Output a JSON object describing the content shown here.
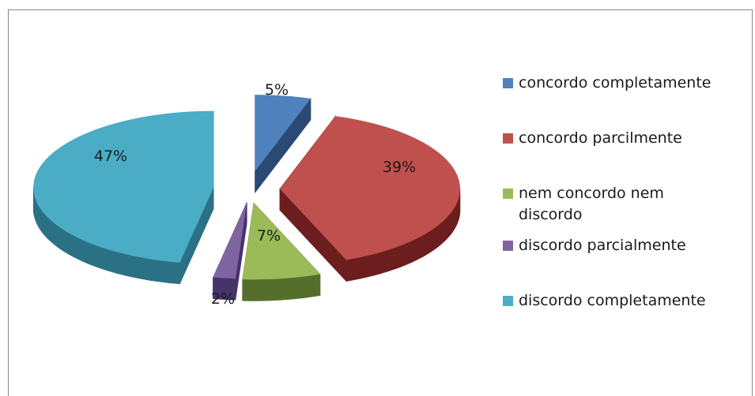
{
  "chart_data": {
    "type": "pie",
    "categories": [
      "concordo completamente",
      "concordo parcilmente",
      "nem concordo nem discordo",
      "discordo parcialmente",
      "discordo completamente"
    ],
    "values": [
      5,
      39,
      7,
      2,
      47
    ],
    "labels": [
      "5%",
      "39%",
      "7%",
      "2%",
      "47%"
    ],
    "legend_position": "right",
    "exploded": true,
    "style": "3d",
    "colors": [
      "#4f81bd",
      "#c0504d",
      "#9bbb59",
      "#8064a2",
      "#4bacc6"
    ],
    "side_colors": [
      "#2a4a75",
      "#6b1e1d",
      "#566e2c",
      "#45336a",
      "#2b7186"
    ]
  }
}
